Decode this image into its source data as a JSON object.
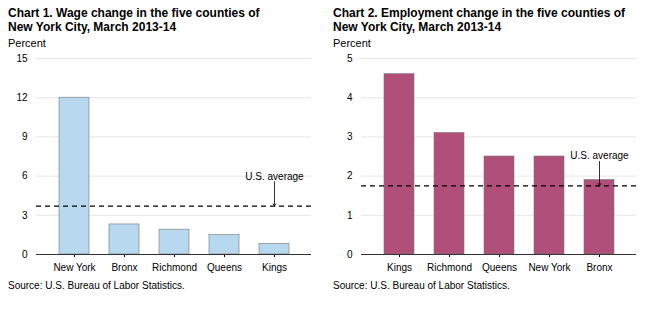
{
  "chart_data": [
    {
      "type": "bar",
      "title": "Chart 1. Wage change in the five counties of\nNew York City, March 2013-14",
      "ylabel": "Percent",
      "categories": [
        "New York",
        "Bronx",
        "Richmond",
        "Queens",
        "Kings"
      ],
      "values": [
        12.0,
        2.3,
        1.9,
        1.5,
        0.8
      ],
      "color": "#b8d8f0",
      "ylim": [
        0,
        15
      ],
      "yticks": [
        0,
        3,
        6,
        9,
        12,
        15
      ],
      "grid": true,
      "annotations": [
        {
          "text": "U.S. average",
          "y": 3.7
        }
      ],
      "caption": "Source: U.S. Bureau of Labor Statistics."
    },
    {
      "type": "bar",
      "title": "Chart 2. Employment change in the five counties of\nNew York City, March 2013-14",
      "ylabel": "Percent",
      "categories": [
        "Kings",
        "Richmond",
        "Queens",
        "New York",
        "Bronx"
      ],
      "values": [
        4.6,
        3.1,
        2.5,
        2.5,
        1.9
      ],
      "color": "#b0507a",
      "ylim": [
        0,
        5
      ],
      "yticks": [
        0,
        1,
        2,
        3,
        4,
        5
      ],
      "grid": true,
      "annotations": [
        {
          "text": "U.S. average",
          "y": 1.75
        }
      ],
      "caption": "Source: U.S. Bureau of Labor Statistics."
    }
  ]
}
